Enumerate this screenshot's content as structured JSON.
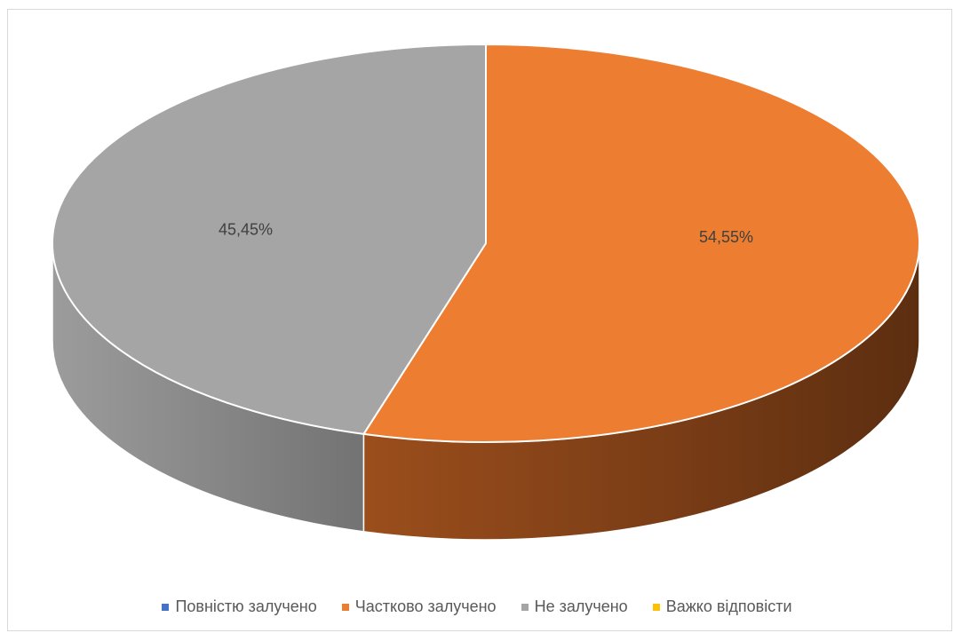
{
  "chart_data": {
    "type": "pie",
    "three_d": true,
    "categories": [
      "Повністю залучено",
      "Частково залучено",
      "Не залучено",
      "Важко відповісти"
    ],
    "values": [
      0,
      54.55,
      45.45,
      0
    ],
    "labels": [
      "",
      "54,55%",
      "45,45%",
      ""
    ],
    "colors": [
      "#4472C4",
      "#ED7D31",
      "#A5A5A5",
      "#FFC000"
    ],
    "legend_position": "bottom"
  }
}
